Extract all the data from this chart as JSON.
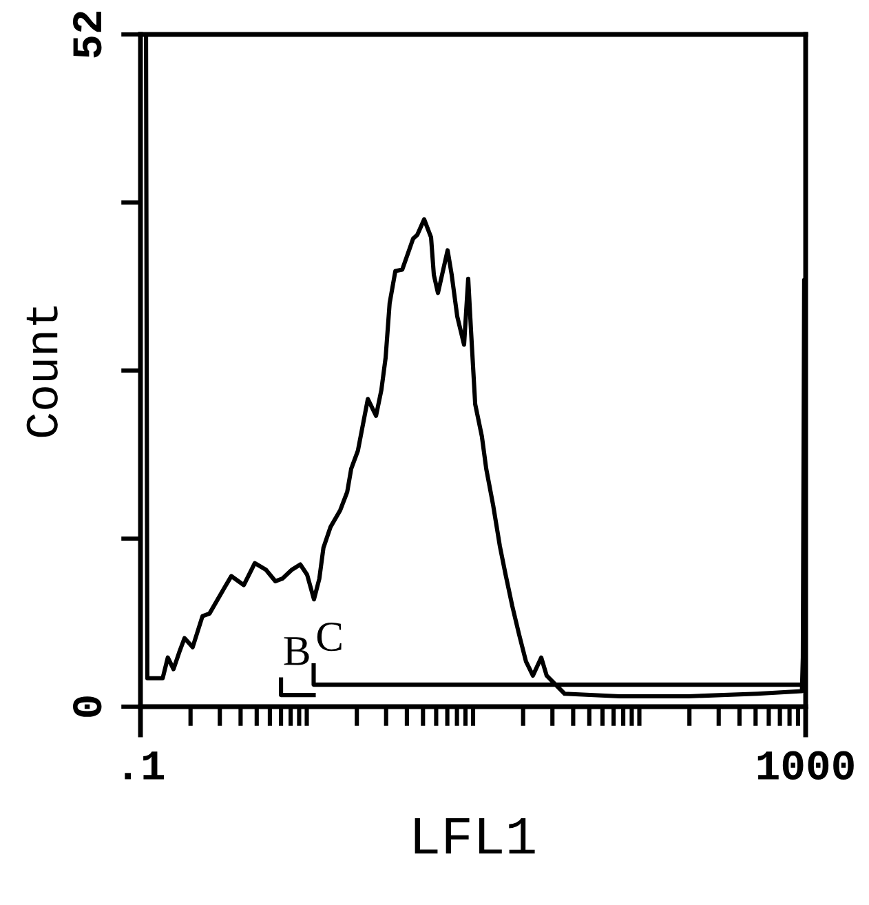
{
  "chart_data": {
    "type": "line",
    "xlabel": "LFL1",
    "ylabel": "Count",
    "line_style": "solid",
    "log": "x",
    "series": [
      {
        "color": "#000000",
        "x": [
          0.1,
          0.108,
          0.11,
          0.116,
          0.136,
          0.146,
          0.158,
          0.171,
          0.184,
          0.206,
          0.236,
          0.26,
          0.32,
          0.352,
          0.418,
          0.487,
          0.567,
          0.648,
          0.713,
          0.815,
          0.914,
          1.005,
          1.105,
          1.19,
          1.26,
          1.39,
          1.59,
          1.75,
          1.85,
          2.03,
          2.33,
          2.61,
          2.81,
          2.98,
          3.15,
          3.41,
          3.75,
          4.12,
          4.36,
          4.62,
          5.08,
          5.59,
          5.81,
          6.15,
          7.03,
          7.44,
          8.03,
          8.83,
          9.35,
          9.72,
          10.3,
          11.3,
          12.0,
          13.2,
          14.5,
          15.7,
          17.2,
          18.9,
          20.8,
          22.9,
          25.7,
          27.7,
          35.5,
          76,
          198,
          513,
          950,
          962,
          980,
          1000
        ],
        "values": [
          52,
          52,
          2.2,
          2.2,
          2.2,
          3.8,
          2.9,
          4.2,
          5.3,
          4.6,
          7.0,
          7.2,
          9.2,
          10.1,
          9.4,
          11.1,
          10.6,
          9.7,
          9.9,
          10.6,
          11.0,
          10.2,
          8.3,
          9.9,
          12.3,
          13.9,
          15.2,
          16.6,
          18.4,
          19.8,
          23.8,
          22.5,
          24.5,
          27.0,
          31.2,
          33.7,
          33.8,
          35.3,
          36.2,
          36.5,
          37.7,
          36.3,
          33.4,
          32.0,
          35.3,
          33.4,
          30.2,
          28.0,
          33.1,
          29.1,
          23.4,
          20.9,
          18.4,
          15.6,
          12.4,
          10.2,
          7.8,
          5.6,
          3.5,
          2.4,
          3.8,
          2.4,
          1.0,
          0.8,
          0.8,
          1.0,
          1.2,
          3.8,
          33,
          33
        ]
      },
      {
        "name": "B",
        "color": "#000000",
        "x": [
          0.7,
          0.7,
          1.1
        ],
        "values": [
          2.1,
          0.9,
          0.9
        ]
      },
      {
        "name": "C",
        "color": "#000000",
        "x": [
          1.1,
          1.1,
          1000
        ],
        "values": [
          3.2,
          1.7,
          1.7
        ]
      }
    ],
    "xlim": [
      0.1,
      1000
    ],
    "xticks": [
      {
        "value": 0.1,
        "label": ".1"
      },
      1000
    ],
    "ylim": [
      0,
      52
    ],
    "yticks": [
      {
        "value": 0,
        "label": "0"
      },
      {
        "value": 13,
        "label": null
      },
      {
        "value": 26,
        "label": null
      },
      {
        "value": 39,
        "label": null
      },
      52
    ]
  }
}
